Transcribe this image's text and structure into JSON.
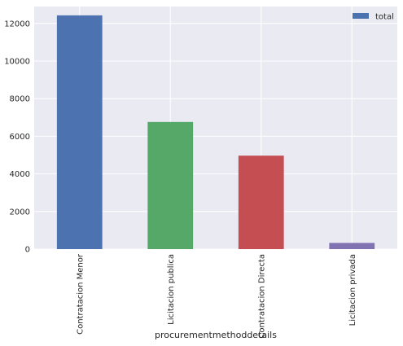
{
  "chart_data": {
    "type": "bar",
    "categories": [
      "Contratacion Menor",
      "Licitacion publica",
      "Contratacion Directa",
      "Licitacion privada"
    ],
    "series": [
      {
        "name": "total",
        "values": [
          12430,
          6760,
          4970,
          330
        ]
      }
    ],
    "bar_colors": [
      "#4c72b0",
      "#55a868",
      "#c44e52",
      "#8172b2"
    ],
    "legend_color": "#4c72b0",
    "xlabel": "procurementmethoddetails",
    "ylabel": "",
    "ylim": [
      0,
      12900
    ],
    "yticks": [
      0,
      2000,
      4000,
      6000,
      8000,
      10000,
      12000
    ],
    "grid": true,
    "legend_position": "top-right",
    "background_color": "#eaeaf2"
  }
}
